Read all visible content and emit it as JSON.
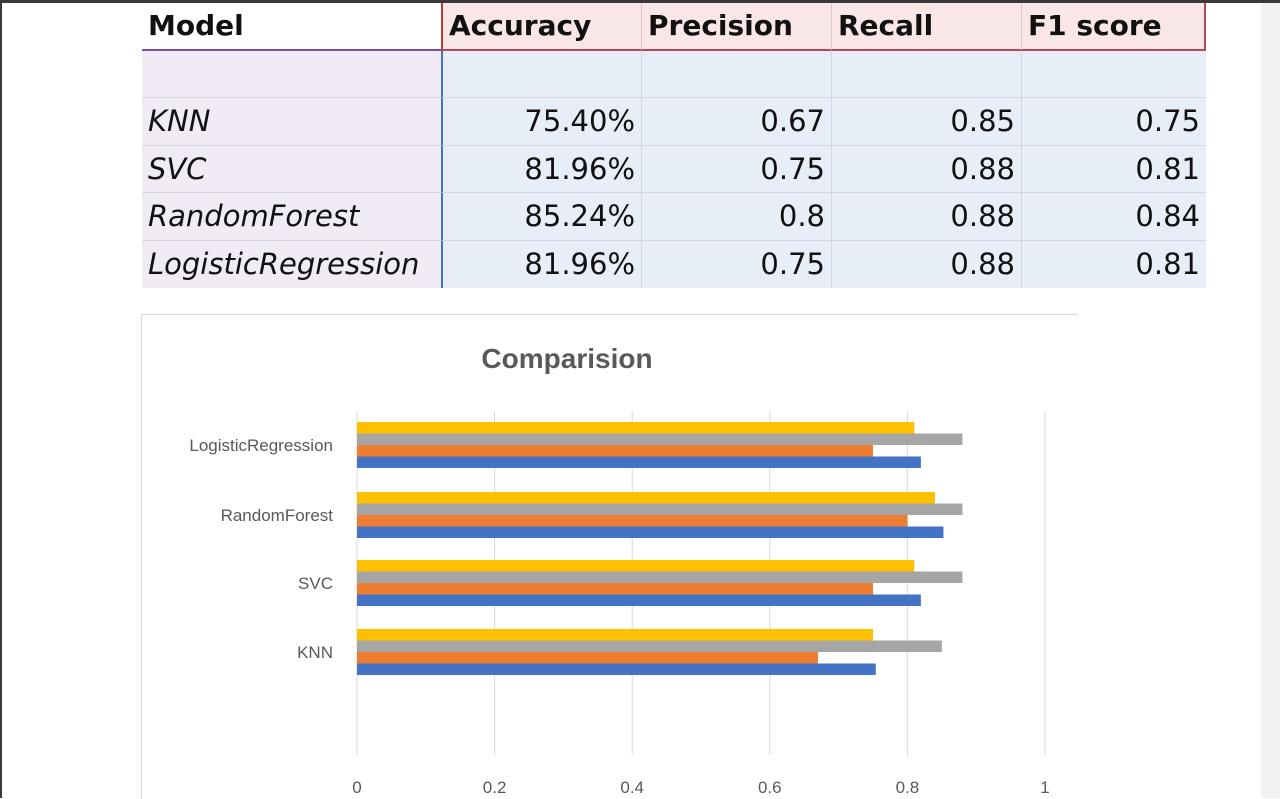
{
  "table": {
    "headers": [
      "Model",
      "Accuracy",
      "Precision",
      "Recall",
      "F1 score"
    ],
    "rows": [
      [
        "KNN",
        "75.40%",
        "0.67",
        "0.85",
        "0.75"
      ],
      [
        "SVC",
        "81.96%",
        "0.75",
        "0.88",
        "0.81"
      ],
      [
        "RandomForest",
        "85.24%",
        "0.8",
        "0.88",
        "0.84"
      ],
      [
        "LogisticRegression",
        "81.96%",
        "0.75",
        "0.88",
        "0.81"
      ]
    ]
  },
  "chart_data": {
    "type": "bar",
    "orientation": "horizontal",
    "title": "Comparision",
    "categories": [
      "KNN",
      "SVC",
      "RandomForest",
      "LogisticRegression"
    ],
    "series": [
      {
        "values": [
          0.754,
          0.8196,
          0.8524,
          0.8196
        ],
        "color": "#4472c4"
      },
      {
        "values": [
          0.67,
          0.75,
          0.8,
          0.75
        ],
        "color": "#ed7d31"
      },
      {
        "values": [
          0.85,
          0.88,
          0.88,
          0.88
        ],
        "color": "#a5a5a5"
      },
      {
        "values": [
          0.75,
          0.81,
          0.84,
          0.81
        ],
        "color": "#ffc000"
      }
    ],
    "xlim": [
      0,
      1
    ],
    "xticks": [
      "0",
      "0.2",
      "0.4",
      "0.6",
      "0.8",
      "1"
    ],
    "grid": true,
    "legend": false
  }
}
